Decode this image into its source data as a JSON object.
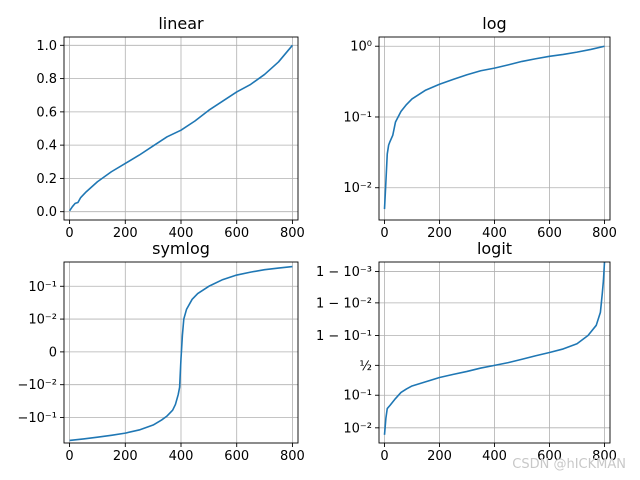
{
  "chart_data": [
    {
      "type": "line",
      "title": "linear",
      "scale": "linear",
      "series_color": "#1f77b4",
      "xlim": [
        -20,
        820
      ],
      "ylim": [
        -0.05,
        1.05
      ],
      "xticks": [
        0,
        200,
        400,
        600,
        800
      ],
      "xticklabels": [
        "0",
        "200",
        "400",
        "600",
        "800"
      ],
      "yticks": [
        0.0,
        0.2,
        0.4,
        0.6,
        0.8,
        1.0
      ],
      "yticklabels": [
        "0.0",
        "0.2",
        "0.4",
        "0.6",
        "0.8",
        "1.0"
      ],
      "grid": true,
      "x": [
        0,
        10,
        20,
        30,
        40,
        60,
        80,
        100,
        150,
        200,
        250,
        300,
        350,
        400,
        450,
        500,
        550,
        600,
        650,
        700,
        750,
        800
      ],
      "y": [
        0.005,
        0.03,
        0.05,
        0.055,
        0.085,
        0.12,
        0.15,
        0.18,
        0.24,
        0.29,
        0.34,
        0.395,
        0.45,
        0.49,
        0.545,
        0.61,
        0.665,
        0.72,
        0.765,
        0.825,
        0.9,
        1.0
      ]
    },
    {
      "type": "line",
      "title": "log",
      "scale": "log",
      "series_color": "#1f77b4",
      "xlim": [
        -20,
        820
      ],
      "ylim": [
        0.0035,
        1.35
      ],
      "xticks": [
        0,
        200,
        400,
        600,
        800
      ],
      "xticklabels": [
        "0",
        "200",
        "400",
        "600",
        "800"
      ],
      "yticks": [
        0.01,
        0.1,
        1
      ],
      "yticklabels": [
        "10⁻²",
        "10⁻¹",
        "10⁰"
      ],
      "grid": true,
      "x": [
        0,
        5,
        10,
        15,
        20,
        30,
        40,
        60,
        80,
        100,
        150,
        200,
        250,
        300,
        350,
        400,
        450,
        500,
        550,
        600,
        650,
        700,
        750,
        800
      ],
      "y": [
        0.005,
        0.012,
        0.03,
        0.04,
        0.045,
        0.055,
        0.085,
        0.12,
        0.15,
        0.18,
        0.24,
        0.29,
        0.34,
        0.395,
        0.45,
        0.49,
        0.545,
        0.61,
        0.665,
        0.72,
        0.765,
        0.825,
        0.9,
        1.0
      ]
    },
    {
      "type": "line",
      "title": "symlog",
      "scale": "symlog",
      "series_color": "#1f77b4",
      "xlim": [
        -20,
        820
      ],
      "ylim": [
        -0.6,
        0.55
      ],
      "xticks": [
        0,
        200,
        400,
        600,
        800
      ],
      "xticklabels": [
        "0",
        "200",
        "400",
        "600",
        "800"
      ],
      "yticks": [
        -0.1,
        -0.01,
        0,
        0.01,
        0.1
      ],
      "yticklabels": [
        "−10⁻¹",
        "−10⁻²",
        "0",
        "10⁻²",
        "10⁻¹"
      ],
      "grid": true,
      "x": [
        0,
        50,
        100,
        150,
        200,
        250,
        300,
        330,
        350,
        370,
        380,
        390,
        395,
        400,
        405,
        410,
        420,
        440,
        460,
        500,
        550,
        600,
        650,
        700,
        750,
        800
      ],
      "y": [
        -0.5,
        -0.45,
        -0.4,
        -0.35,
        -0.3,
        -0.24,
        -0.17,
        -0.12,
        -0.09,
        -0.06,
        -0.04,
        -0.02,
        -0.012,
        -0.002,
        0.005,
        0.01,
        0.02,
        0.04,
        0.06,
        0.1,
        0.16,
        0.22,
        0.27,
        0.32,
        0.36,
        0.4
      ]
    },
    {
      "type": "line",
      "title": "logit",
      "scale": "logit",
      "series_color": "#1f77b4",
      "xlim": [
        -20,
        820
      ],
      "ylim": [
        0.0033,
        0.9995
      ],
      "xticks": [
        0,
        200,
        400,
        600,
        800
      ],
      "xticklabels": [
        "0",
        "200",
        "400",
        "600",
        "800"
      ],
      "yticks": [
        0.01,
        0.1,
        0.5,
        0.9,
        0.99,
        0.999
      ],
      "yticklabels": [
        "10⁻²",
        "10⁻¹",
        "½",
        "1 − 10⁻¹",
        "1 − 10⁻²",
        "1 − 10⁻³"
      ],
      "grid": true,
      "x": [
        0,
        5,
        10,
        20,
        40,
        60,
        80,
        100,
        150,
        200,
        250,
        300,
        350,
        400,
        450,
        500,
        550,
        600,
        650,
        700,
        740,
        770,
        785,
        792,
        796,
        800
      ],
      "y": [
        0.006,
        0.02,
        0.04,
        0.05,
        0.08,
        0.12,
        0.15,
        0.18,
        0.23,
        0.29,
        0.34,
        0.39,
        0.45,
        0.5,
        0.55,
        0.61,
        0.67,
        0.72,
        0.77,
        0.83,
        0.9,
        0.95,
        0.98,
        0.995,
        0.998,
        0.9995
      ]
    }
  ],
  "watermark": "CSDN @hICKMAN"
}
